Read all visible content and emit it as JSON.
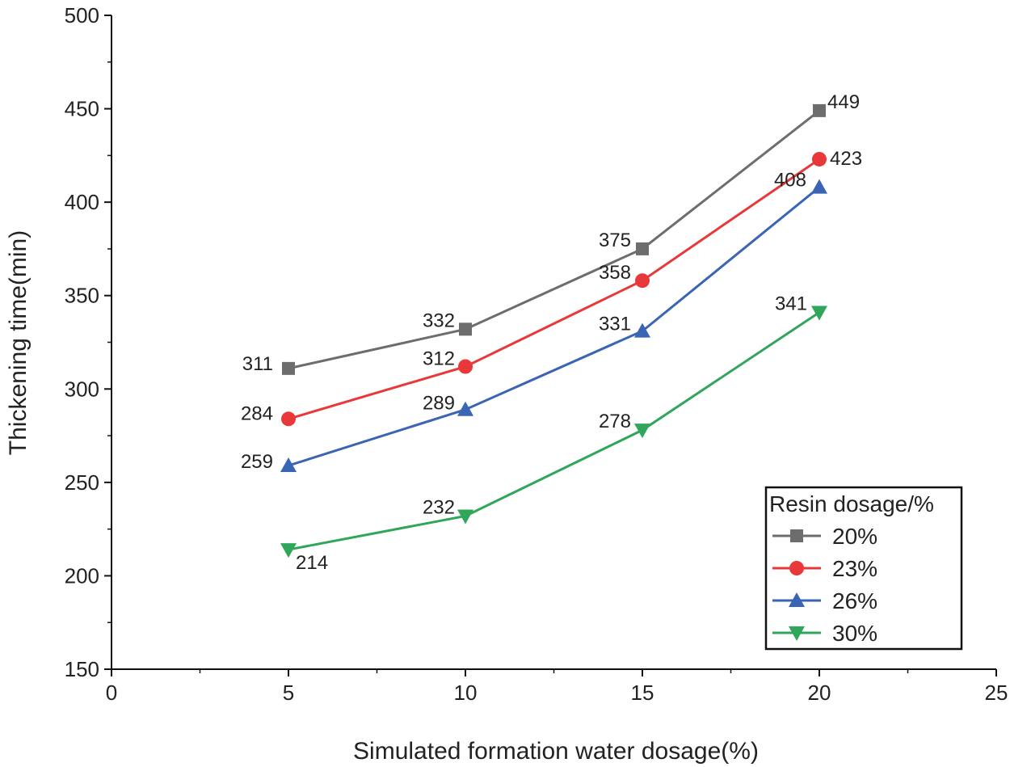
{
  "chart_data": {
    "type": "line",
    "title": "",
    "xlabel": "Simulated formation water dosage(%)",
    "ylabel": "Thickening time(min)",
    "xlim": [
      0,
      25
    ],
    "ylim": [
      150,
      500
    ],
    "x_ticks": [
      "0",
      "5",
      "10",
      "15",
      "20",
      "25"
    ],
    "y_ticks": [
      "150",
      "200",
      "250",
      "300",
      "350",
      "400",
      "450",
      "500"
    ],
    "x": [
      5,
      10,
      15,
      20
    ],
    "legend_title": "Resin dosage/%",
    "legend_position": "bottom-right",
    "series": [
      {
        "name": "20%",
        "values": [
          311,
          332,
          375,
          449
        ],
        "color": "#6d6d6d",
        "marker": "square",
        "labels": [
          "311",
          "332",
          "375",
          "449"
        ]
      },
      {
        "name": "23%",
        "values": [
          284,
          312,
          358,
          423
        ],
        "color": "#e8383a",
        "marker": "circle",
        "labels": [
          "284",
          "312",
          "358",
          "423"
        ]
      },
      {
        "name": "26%",
        "values": [
          259,
          289,
          331,
          408
        ],
        "color": "#3a64b4",
        "marker": "triangle-up",
        "labels": [
          "259",
          "289",
          "331",
          "408"
        ]
      },
      {
        "name": "30%",
        "values": [
          214,
          232,
          278,
          341
        ],
        "color": "#2fa65a",
        "marker": "triangle-down",
        "labels": [
          "214",
          "232",
          "278",
          "341"
        ]
      }
    ]
  }
}
